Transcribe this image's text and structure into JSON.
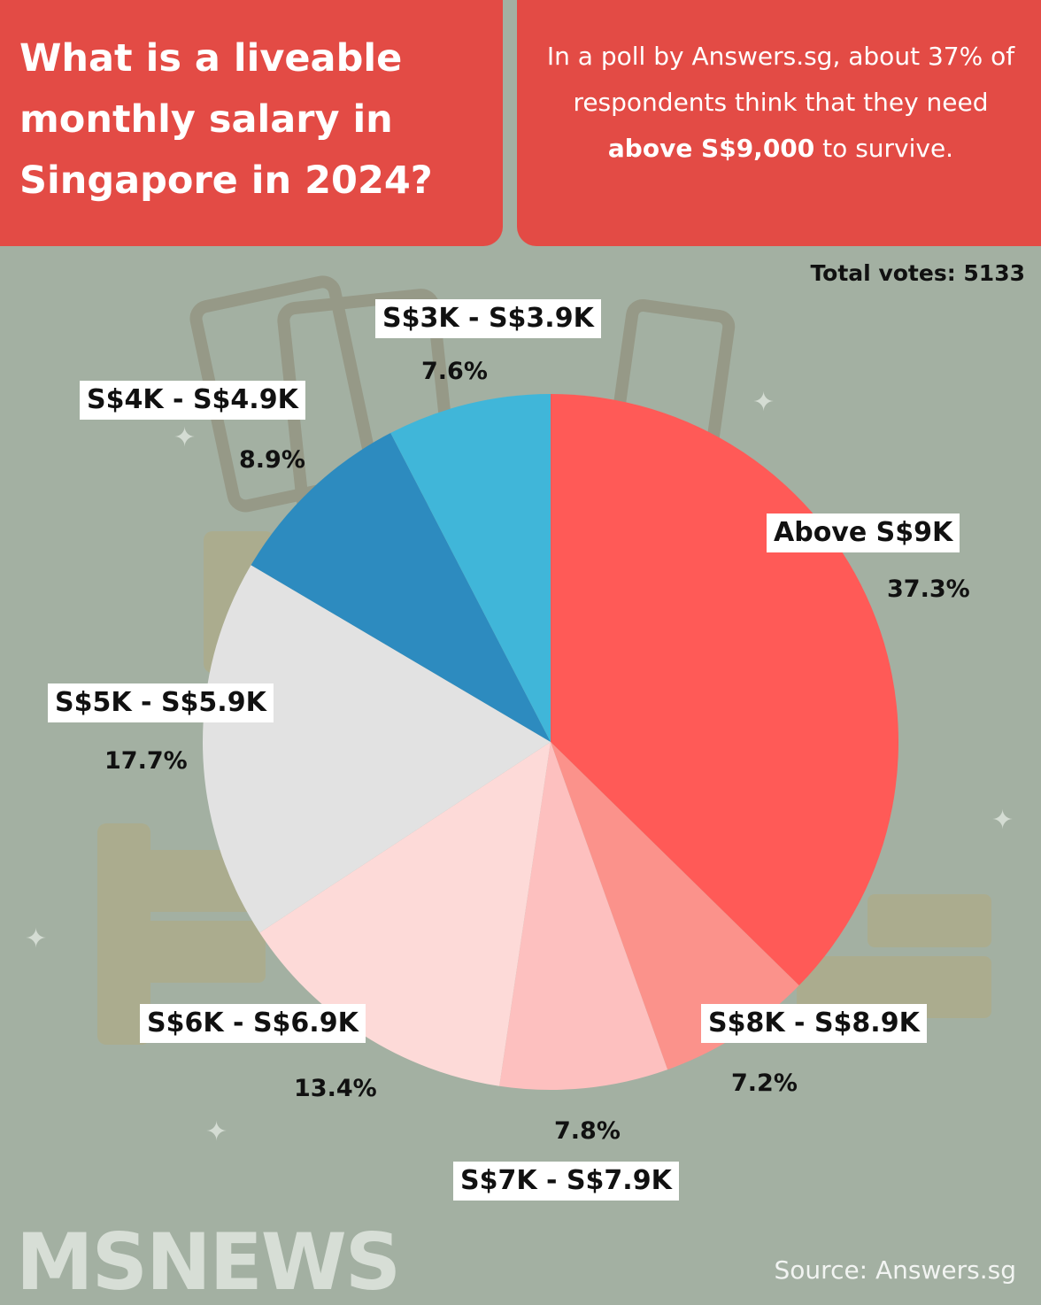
{
  "header": {
    "title": "What is a liveable monthly salary in Singapore in 2024?",
    "summary_pre": "In a poll by Answers.sg, about 37% of respondents think that they need ",
    "summary_bold": "above S$9,000",
    "summary_post": " to survive."
  },
  "total_votes": "Total votes: 5133",
  "logo_text": "MSNEWS",
  "source": "Source: Answers.sg",
  "colors": {
    "header_bg": "#e34b45",
    "background": "#a3b0a2"
  },
  "chart_data": {
    "type": "pie",
    "start_angle_deg": 0,
    "direction": "clockwise",
    "legend": "none",
    "slices": [
      {
        "label": "Above S$9K",
        "value": 37.3,
        "value_label": "37.3%",
        "color": "#ff5a57"
      },
      {
        "label": "S$8K - S$8.9K",
        "value": 7.2,
        "value_label": "7.2%",
        "color": "#fb928b"
      },
      {
        "label": "S$7K - S$7.9K",
        "value": 7.8,
        "value_label": "7.8%",
        "color": "#fdc0bf"
      },
      {
        "label": "S$6K - S$6.9K",
        "value": 13.4,
        "value_label": "13.4%",
        "color": "#fddad8"
      },
      {
        "label": "S$5K - S$5.9K",
        "value": 17.7,
        "value_label": "17.7%",
        "color": "#e2e2e2"
      },
      {
        "label": "S$4K - S$4.9K",
        "value": 8.9,
        "value_label": "8.9%",
        "color": "#2d8bbf"
      },
      {
        "label": "S$3K - S$3.9K",
        "value": 7.6,
        "value_label": "7.6%",
        "color": "#40b6d9"
      }
    ]
  }
}
